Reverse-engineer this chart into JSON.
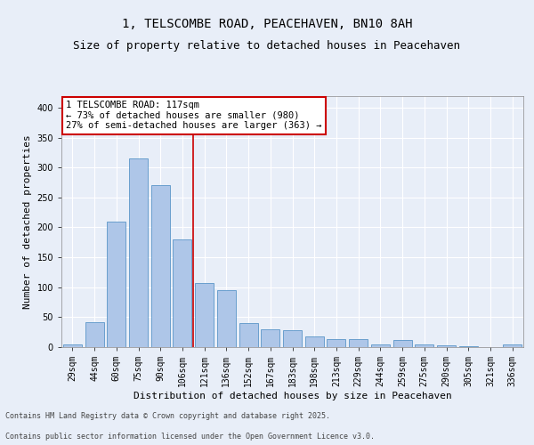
{
  "title_line1": "1, TELSCOMBE ROAD, PEACEHAVEN, BN10 8AH",
  "title_line2": "Size of property relative to detached houses in Peacehaven",
  "xlabel": "Distribution of detached houses by size in Peacehaven",
  "ylabel": "Number of detached properties",
  "categories": [
    "29sqm",
    "44sqm",
    "60sqm",
    "75sqm",
    "90sqm",
    "106sqm",
    "121sqm",
    "136sqm",
    "152sqm",
    "167sqm",
    "183sqm",
    "198sqm",
    "213sqm",
    "229sqm",
    "244sqm",
    "259sqm",
    "275sqm",
    "290sqm",
    "305sqm",
    "321sqm",
    "336sqm"
  ],
  "values": [
    5,
    42,
    210,
    315,
    270,
    180,
    107,
    95,
    40,
    30,
    28,
    18,
    14,
    13,
    5,
    12,
    5,
    3,
    1,
    0,
    4
  ],
  "bar_color": "#aec6e8",
  "bar_edge_color": "#5a96c8",
  "annotation_text": "1 TELSCOMBE ROAD: 117sqm\n← 73% of detached houses are smaller (980)\n27% of semi-detached houses are larger (363) →",
  "annotation_box_color": "#ffffff",
  "annotation_box_edge_color": "#cc0000",
  "vline_color": "#cc0000",
  "vline_x_index": 6,
  "background_color": "#e8eef8",
  "plot_bg_color": "#e8eef8",
  "footer_line1": "Contains HM Land Registry data © Crown copyright and database right 2025.",
  "footer_line2": "Contains public sector information licensed under the Open Government Licence v3.0.",
  "ylim": [
    0,
    420
  ],
  "yticks": [
    0,
    50,
    100,
    150,
    200,
    250,
    300,
    350,
    400
  ],
  "title_fontsize": 10,
  "subtitle_fontsize": 9,
  "axis_label_fontsize": 8,
  "tick_fontsize": 7,
  "annotation_fontsize": 7.5,
  "footer_fontsize": 6
}
